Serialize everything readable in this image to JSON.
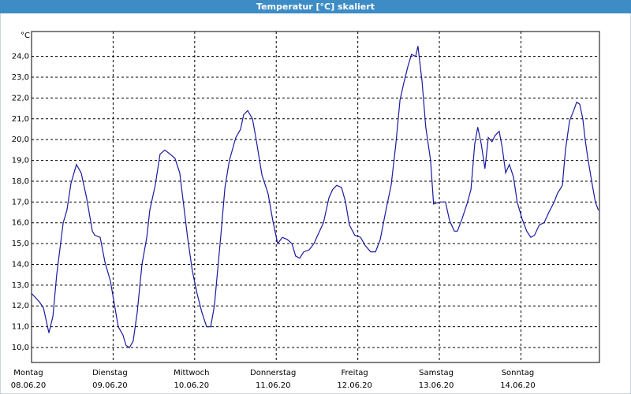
{
  "chart_data": {
    "type": "line",
    "title": "Temperatur [°C] skaliert",
    "y_unit": "°C",
    "xlim": [
      0,
      167.1
    ],
    "ylim": [
      9.28,
      25.2
    ],
    "xticks": [
      {
        "value": 0,
        "label": "Montag",
        "date": "08.06.20"
      },
      {
        "value": 24,
        "label": "Dienstag",
        "date": "09.06.20"
      },
      {
        "value": 48,
        "label": "Mittwoch",
        "date": "10.06.20"
      },
      {
        "value": 72,
        "label": "Donnerstag",
        "date": "11.06.20"
      },
      {
        "value": 96,
        "label": "Freitag",
        "date": "12.06.20"
      },
      {
        "value": 120,
        "label": "Samstag",
        "date": "13.06.20"
      },
      {
        "value": 144,
        "label": "Sonntag",
        "date": "14.06.20"
      }
    ],
    "yticks": [
      {
        "value": 10,
        "label": "10,0"
      },
      {
        "value": 11,
        "label": "11,0"
      },
      {
        "value": 12,
        "label": "12,0"
      },
      {
        "value": 13,
        "label": "13,0"
      },
      {
        "value": 14,
        "label": "14,0"
      },
      {
        "value": 15,
        "label": "15,0"
      },
      {
        "value": 16,
        "label": "16,0"
      },
      {
        "value": 17,
        "label": "17,0"
      },
      {
        "value": 18,
        "label": "18,0"
      },
      {
        "value": 19,
        "label": "19,0"
      },
      {
        "value": 20,
        "label": "20,0"
      },
      {
        "value": 21,
        "label": "21,0"
      },
      {
        "value": 22,
        "label": "22,0"
      },
      {
        "value": 23,
        "label": "23,0"
      },
      {
        "value": 24,
        "label": "24,0"
      }
    ],
    "grid": true,
    "color": "#1a1aa0",
    "x": [
      0,
      2.3,
      3.5,
      5.1,
      6.3,
      7.4,
      9.3,
      10.4,
      11.6,
      13.2,
      14.6,
      16.2,
      17.9,
      18.6,
      20.2,
      21.6,
      23.2,
      25.5,
      26.9,
      27.8,
      28.8,
      29.9,
      31.1,
      32.5,
      33.9,
      34.8,
      36.4,
      37.8,
      39.2,
      40.8,
      42.2,
      43.6,
      44.8,
      45.9,
      47.3,
      48.7,
      50.1,
      51.5,
      52.7,
      53.8,
      55.7,
      56.9,
      58.2,
      60.1,
      61.5,
      62.4,
      63.6,
      65,
      66.1,
      67.8,
      69.6,
      71,
      72.4,
      73.8,
      75.2,
      76.6,
      77.7,
      78.9,
      80.1,
      81.7,
      83.1,
      84.2,
      85.9,
      87.5,
      88.6,
      89.8,
      91.2,
      92.4,
      93.5,
      95.1,
      96.8,
      98.2,
      99.8,
      101.2,
      102.6,
      104.4,
      105.8,
      107.2,
      108.4,
      109.5,
      110.7,
      111.8,
      113,
      113.7,
      114.9,
      116,
      117.4,
      118.3,
      120.2,
      121.8,
      123,
      124.4,
      125.3,
      126.7,
      128.1,
      129.3,
      130.4,
      131.3,
      132.3,
      133.4,
      134.4,
      135.5,
      136.4,
      137.6,
      138.5,
      139.5,
      140.6,
      141.8,
      142.9,
      144.3,
      145.7,
      146.9,
      148,
      149.4,
      150.8,
      152.2,
      153.8,
      154.7,
      156.2,
      157.1,
      158.3,
      159.5,
      160.4,
      161.3,
      162.2,
      162.9,
      163.6,
      164.8,
      165.9,
      166.8
    ],
    "values": [
      12.6,
      12.2,
      11.9,
      10.7,
      11.5,
      13.5,
      16,
      16.6,
      17.9,
      18.8,
      18.4,
      17.2,
      15.6,
      15.4,
      15.3,
      14.1,
      13.2,
      11,
      10.6,
      10.1,
      10,
      10.3,
      11.7,
      14,
      15.3,
      16.6,
      17.8,
      19.3,
      19.5,
      19.3,
      19.1,
      18.4,
      16.8,
      15.3,
      13.7,
      12.6,
      11.7,
      11,
      11,
      12,
      15.4,
      17.7,
      19,
      20.1,
      20.5,
      21.2,
      21.4,
      21,
      20,
      18.3,
      17.4,
      16.1,
      15,
      15.3,
      15.2,
      15,
      14.4,
      14.3,
      14.6,
      14.7,
      15,
      15.4,
      16,
      17.2,
      17.6,
      17.8,
      17.7,
      17,
      15.9,
      15.4,
      15.3,
      14.9,
      14.6,
      14.6,
      15.2,
      16.7,
      17.8,
      19.8,
      21.9,
      22.7,
      23.5,
      24.1,
      24,
      24.5,
      22.8,
      20.6,
      19,
      16.9,
      17,
      17,
      16.1,
      15.6,
      15.6,
      16.2,
      16.9,
      17.6,
      19.8,
      20.6,
      19.8,
      18.6,
      20.1,
      19.9,
      20.2,
      20.4,
      19.6,
      18.4,
      18.8,
      18.2,
      17,
      16.2,
      15.6,
      15.3,
      15.4,
      15.9,
      16,
      16.5,
      17,
      17.4,
      17.8,
      19.5,
      20.9,
      21.4,
      21.8,
      21.7,
      21,
      20,
      19.2,
      18,
      17,
      16.6
    ]
  }
}
